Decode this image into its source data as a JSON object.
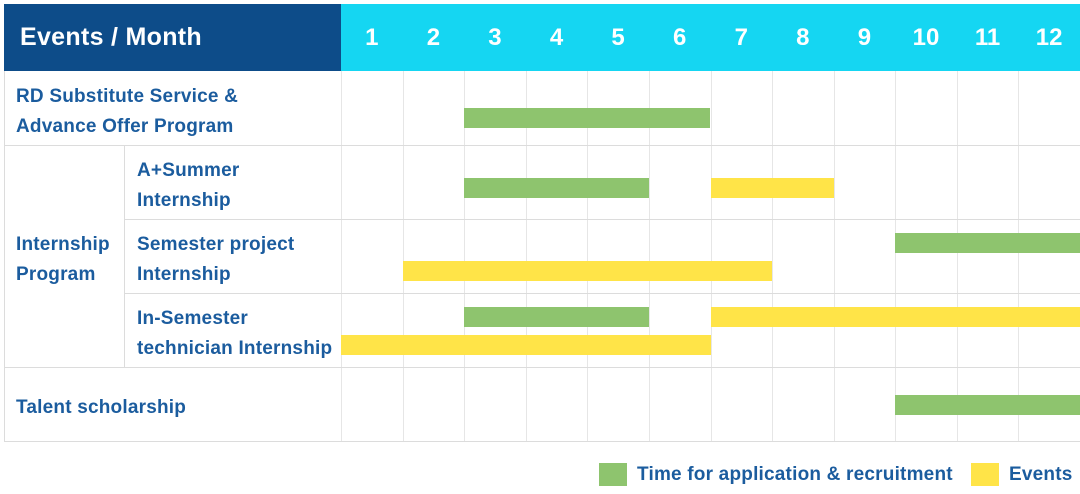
{
  "colors": {
    "navy": "#0d4c89",
    "cyan": "#15d6f2",
    "green": "#8ec46e",
    "yellow": "#ffe448",
    "label_blue": "#1b5c9e",
    "grid": "#e6e6e6",
    "border": "#dcdcdc"
  },
  "chart_data": {
    "type": "table",
    "subtype": "gantt",
    "title": "Events / Month",
    "months": [
      "1",
      "2",
      "3",
      "4",
      "5",
      "6",
      "7",
      "8",
      "9",
      "10",
      "11",
      "12"
    ],
    "x_range": [
      1,
      12
    ],
    "group_label": "Internship Program",
    "group_label_lines": [
      "Internship",
      "Program"
    ],
    "legend": [
      {
        "key": "application",
        "color": "#8ec46e",
        "label": "Time for application & recruitment"
      },
      {
        "key": "events",
        "color": "#ffe448",
        "label": "Events"
      }
    ],
    "rows": [
      {
        "label": "RD Substitute Service & Advance Offer Program",
        "label_lines": [
          "RD Substitute Service &",
          "Advance Offer Program"
        ],
        "group": null,
        "bars": [
          {
            "type": "application",
            "start_month": 3,
            "end_month": 6,
            "lane": 0
          }
        ]
      },
      {
        "label": "A+Summer Internship",
        "label_lines": [
          "A+Summer",
          "Internship"
        ],
        "group": "Internship Program",
        "bars": [
          {
            "type": "application",
            "start_month": 3,
            "end_month": 5,
            "lane": 0
          },
          {
            "type": "events",
            "start_month": 7,
            "end_month": 8,
            "lane": 0
          }
        ]
      },
      {
        "label": "Semester project Internship",
        "label_lines": [
          "Semester project",
          "Internship"
        ],
        "group": "Internship Program",
        "bars": [
          {
            "type": "application",
            "start_month": 10,
            "end_month": 12,
            "lane": 0
          },
          {
            "type": "events",
            "start_month": 2,
            "end_month": 7,
            "lane": 1
          }
        ]
      },
      {
        "label": "In-Semester technician Internship",
        "label_lines": [
          "In-Semester",
          "technician Internship"
        ],
        "group": "Internship Program",
        "bars": [
          {
            "type": "application",
            "start_month": 3,
            "end_month": 5,
            "lane": 0
          },
          {
            "type": "events",
            "start_month": 7,
            "end_month": 12,
            "lane": 0
          },
          {
            "type": "events",
            "start_month": 1,
            "end_month": 6,
            "lane": 1
          }
        ]
      },
      {
        "label": "Talent scholarship",
        "label_lines": [
          "Talent scholarship"
        ],
        "group": null,
        "bars": [
          {
            "type": "application",
            "start_month": 10,
            "end_month": 12,
            "lane": 0
          }
        ]
      }
    ]
  }
}
